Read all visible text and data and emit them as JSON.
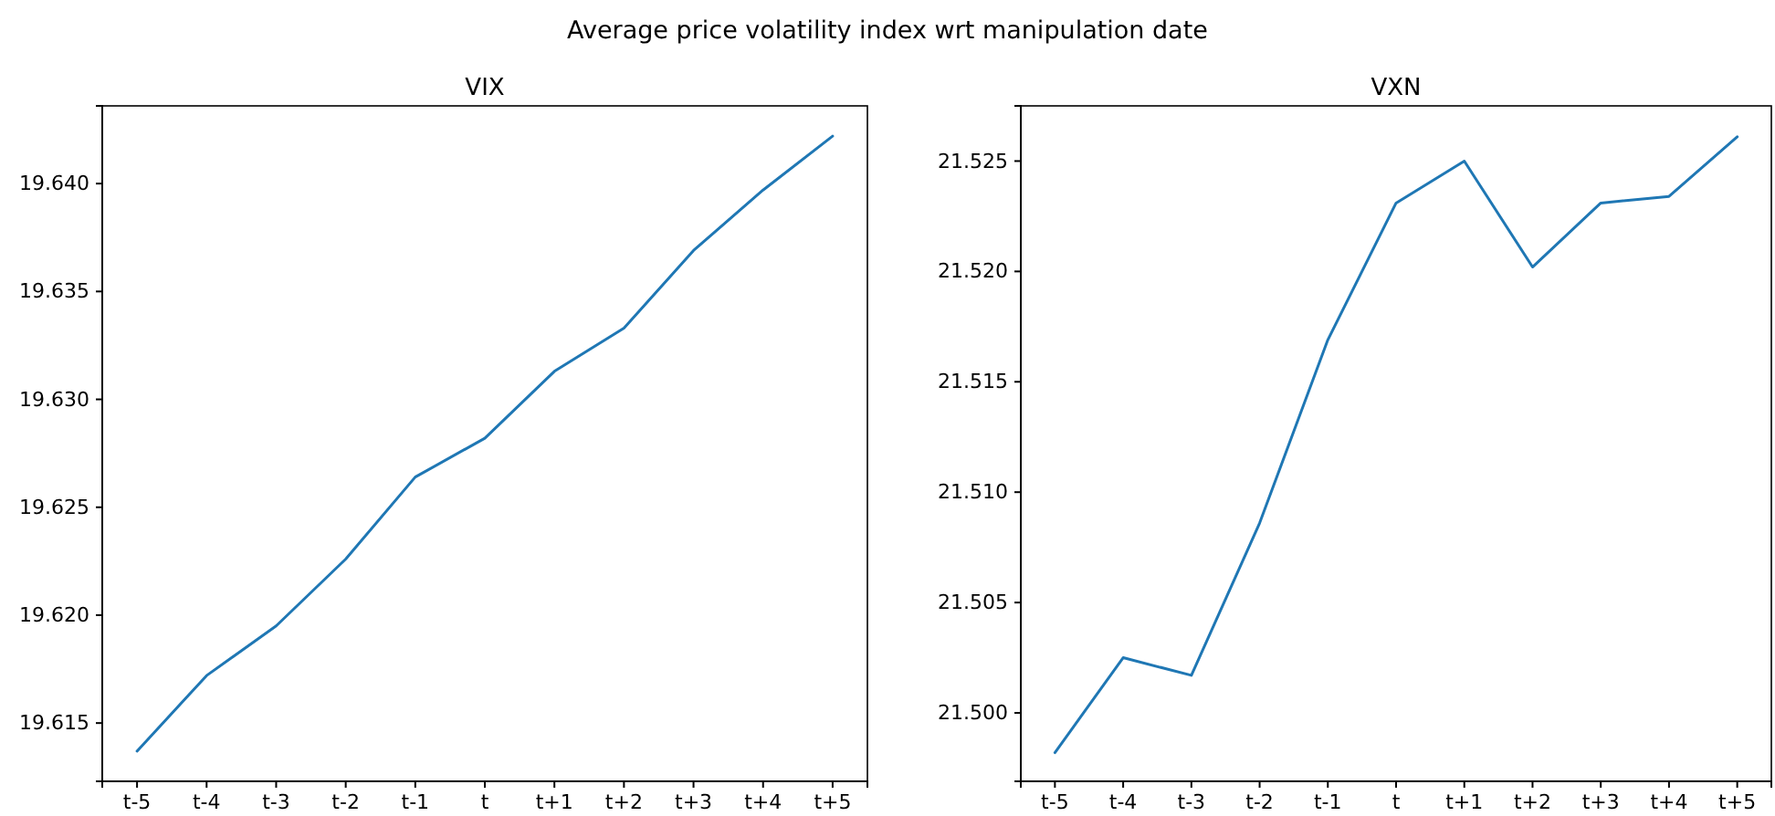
{
  "chart_data": [
    {
      "type": "line",
      "title": "VIX",
      "categories": [
        "t-5",
        "t-4",
        "t-3",
        "t-2",
        "t-1",
        "t",
        "t+1",
        "t+2",
        "t+3",
        "t+4",
        "t+5"
      ],
      "series": [
        {
          "color": "#1f77b4",
          "values": [
            19.6137,
            19.6172,
            19.6195,
            19.6226,
            19.6264,
            19.6282,
            19.6313,
            19.6333,
            19.6369,
            19.6397,
            19.6422
          ]
        }
      ],
      "ylim": [
        19.6123,
        19.6436
      ],
      "yticks": [
        {
          "value": 19.615,
          "label": "19.615"
        },
        {
          "value": 19.62,
          "label": "19.620"
        },
        {
          "value": 19.625,
          "label": "19.625"
        },
        {
          "value": 19.63,
          "label": "19.630"
        },
        {
          "value": 19.635,
          "label": "19.635"
        },
        {
          "value": 19.64,
          "label": "19.640"
        }
      ],
      "annotations": [
        "Average price volatility index wrt manipulation date"
      ]
    },
    {
      "type": "line",
      "title": "VXN",
      "categories": [
        "t-5",
        "t-4",
        "t-3",
        "t-2",
        "t-1",
        "t",
        "t+1",
        "t+2",
        "t+3",
        "t+4",
        "t+5"
      ],
      "series": [
        {
          "color": "#1f77b4",
          "values": [
            21.4982,
            21.5025,
            21.5017,
            21.5086,
            21.5169,
            21.5231,
            21.525,
            21.5202,
            21.5231,
            21.5234,
            21.5261
          ]
        }
      ],
      "ylim": [
        21.4969,
        21.5275
      ],
      "yticks": [
        {
          "value": 21.5,
          "label": "21.500"
        },
        {
          "value": 21.505,
          "label": "21.505"
        },
        {
          "value": 21.51,
          "label": "21.510"
        },
        {
          "value": 21.515,
          "label": "21.515"
        },
        {
          "value": 21.52,
          "label": "21.520"
        },
        {
          "value": 21.525,
          "label": "21.525"
        }
      ]
    }
  ]
}
